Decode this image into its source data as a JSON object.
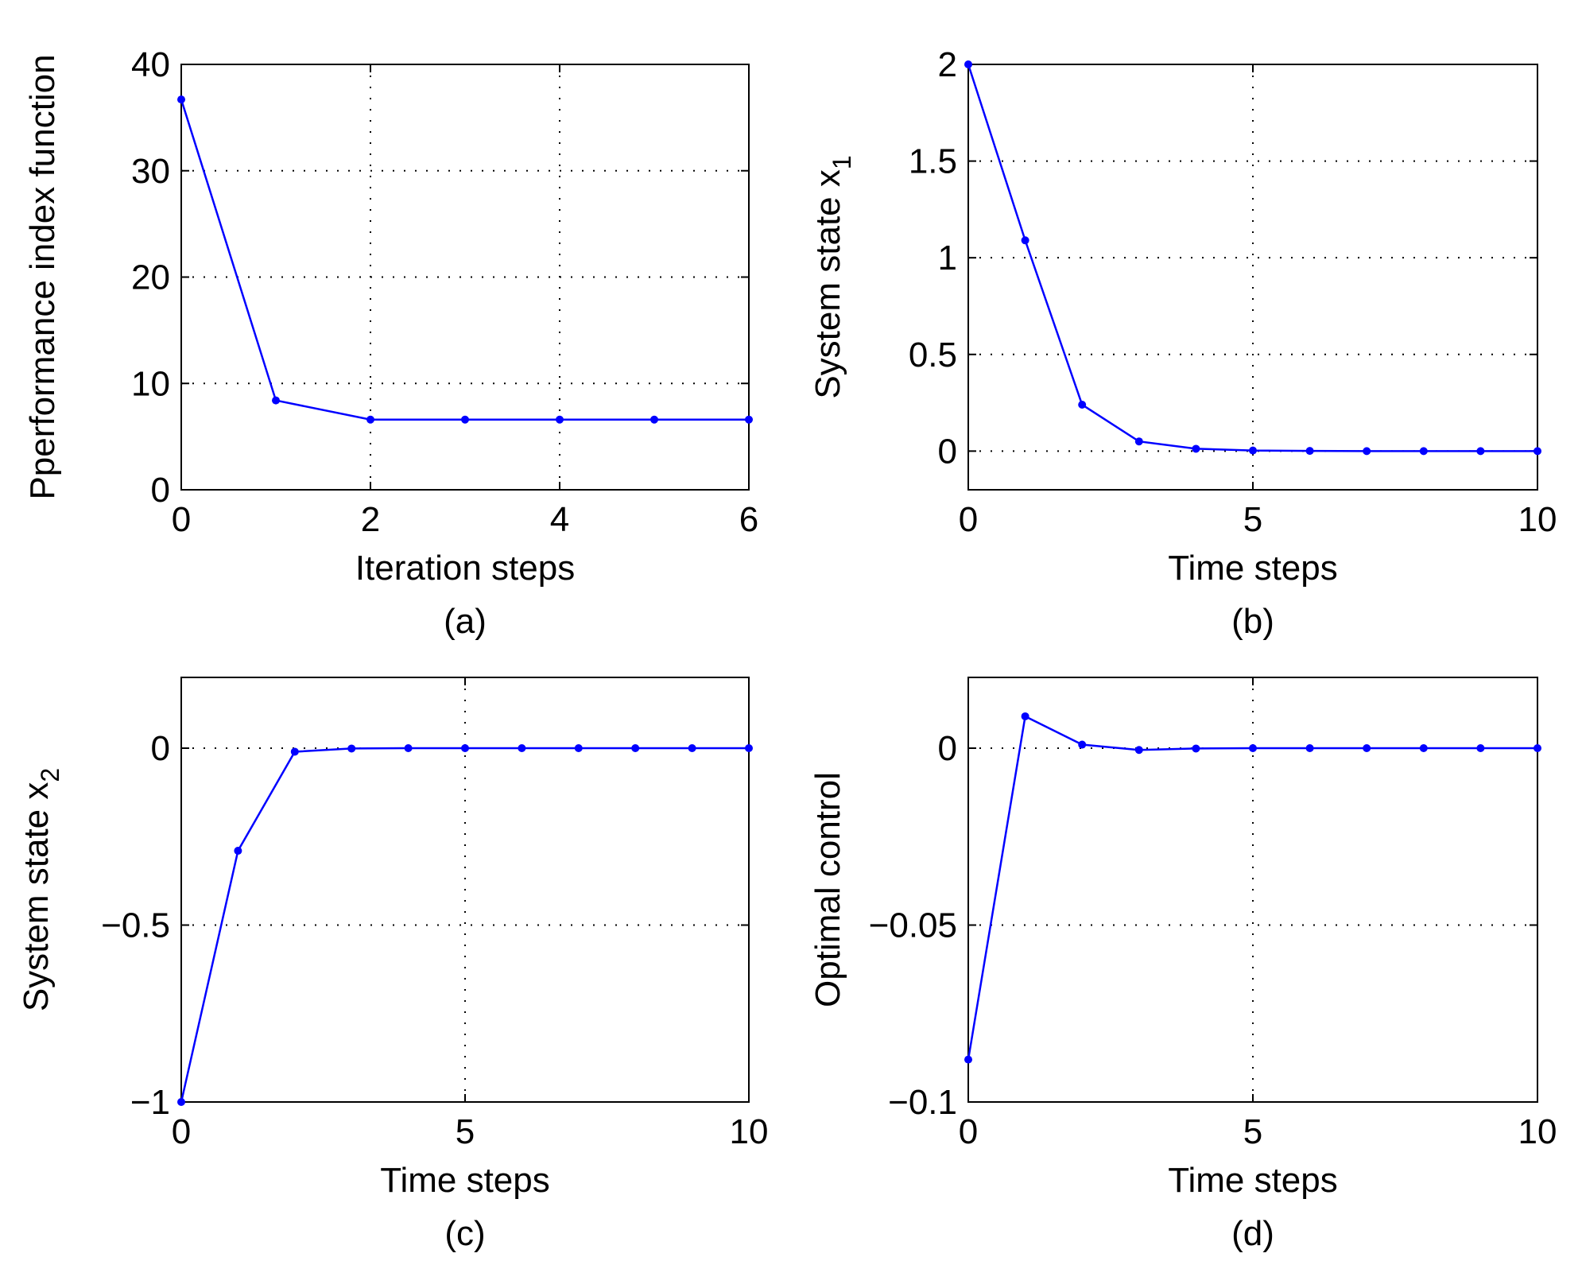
{
  "colors": {
    "series": "#0000ff",
    "axes": "#000000",
    "background": "#ffffff"
  },
  "chart_data": [
    {
      "id": "a",
      "type": "line",
      "caption": "(a)",
      "xlabel": "Iteration steps",
      "ylabel": "Pperformance index function",
      "ylabel_sub": "",
      "xlim": [
        0,
        6
      ],
      "ylim": [
        0,
        40
      ],
      "xticks": [
        0,
        2,
        4,
        6
      ],
      "yticks": [
        0,
        10,
        20,
        30,
        40
      ],
      "xtick_labels": [
        "0",
        "2",
        "4",
        "6"
      ],
      "ytick_labels": [
        "0",
        "10",
        "20",
        "30",
        "40"
      ],
      "grid": true,
      "marker": "dot",
      "x": [
        0,
        1,
        2,
        3,
        4,
        5,
        6
      ],
      "y": [
        36.7,
        8.4,
        6.6,
        6.6,
        6.6,
        6.6,
        6.6
      ]
    },
    {
      "id": "b",
      "type": "line",
      "caption": "(b)",
      "xlabel": "Time steps",
      "ylabel": "System state x",
      "ylabel_sub": "1",
      "xlim": [
        0,
        10
      ],
      "ylim": [
        -0.2,
        2
      ],
      "xticks": [
        0,
        5,
        10
      ],
      "yticks": [
        0,
        0.5,
        1,
        1.5,
        2
      ],
      "xtick_labels": [
        "0",
        "5",
        "10"
      ],
      "ytick_labels": [
        "0",
        "0.5",
        "1",
        "1.5",
        "2"
      ],
      "grid": true,
      "marker": "dot",
      "x": [
        0,
        1,
        2,
        3,
        4,
        5,
        6,
        7,
        8,
        9,
        10
      ],
      "y": [
        2.0,
        1.09,
        0.24,
        0.05,
        0.012,
        0.003,
        0.001,
        0.0,
        0.0,
        0.0,
        0.0
      ]
    },
    {
      "id": "c",
      "type": "line",
      "caption": "(c)",
      "xlabel": "Time steps",
      "ylabel": "System state x",
      "ylabel_sub": "2",
      "xlim": [
        0,
        10
      ],
      "ylim": [
        -1,
        0.2
      ],
      "xticks": [
        0,
        5,
        10
      ],
      "yticks": [
        -1,
        -0.5,
        0
      ],
      "xtick_labels": [
        "0",
        "5",
        "10"
      ],
      "ytick_labels": [
        "−1",
        "−0.5",
        "0"
      ],
      "grid": true,
      "marker": "dot",
      "x": [
        0,
        1,
        2,
        3,
        4,
        5,
        6,
        7,
        8,
        9,
        10
      ],
      "y": [
        -1.0,
        -0.29,
        -0.01,
        -0.001,
        0.0,
        0.0,
        0.0,
        0.0,
        0.0,
        0.0,
        0.0
      ]
    },
    {
      "id": "d",
      "type": "line",
      "caption": "(d)",
      "xlabel": "Time steps",
      "ylabel": "Optimal control",
      "ylabel_sub": "",
      "xlim": [
        0,
        10
      ],
      "ylim": [
        -0.1,
        0.02
      ],
      "xticks": [
        0,
        5,
        10
      ],
      "yticks": [
        -0.1,
        -0.05,
        0
      ],
      "xtick_labels": [
        "0",
        "5",
        "10"
      ],
      "ytick_labels": [
        "−0.1",
        "−0.05",
        "0"
      ],
      "grid": true,
      "marker": "dot",
      "x": [
        0,
        1,
        2,
        3,
        4,
        5,
        6,
        7,
        8,
        9,
        10
      ],
      "y": [
        -0.088,
        0.009,
        0.001,
        -0.0005,
        -0.0001,
        0.0,
        0.0,
        0.0,
        0.0,
        0.0,
        0.0
      ]
    }
  ]
}
